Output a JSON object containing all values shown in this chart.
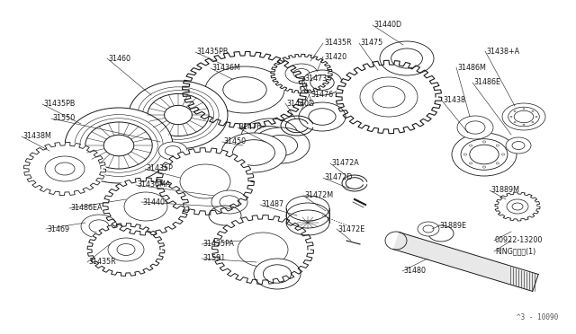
{
  "bg_color": "#ffffff",
  "line_color": "#1a1a1a",
  "fig_width": 6.4,
  "fig_height": 3.72,
  "dpi": 100,
  "watermark": "^3 - 10090",
  "labels": [
    [
      "31435PB",
      220,
      62
    ],
    [
      "31436M",
      238,
      82
    ],
    [
      "31435R",
      358,
      52
    ],
    [
      "31420",
      355,
      68
    ],
    [
      "31440D",
      412,
      30
    ],
    [
      "31475",
      400,
      52
    ],
    [
      "31476",
      355,
      108
    ],
    [
      "31473",
      340,
      90
    ],
    [
      "31440D",
      322,
      118
    ],
    [
      "31486M",
      510,
      80
    ],
    [
      "31438+A",
      540,
      60
    ],
    [
      "31486E",
      528,
      95
    ],
    [
      "31438",
      495,
      115
    ],
    [
      "31460",
      118,
      68
    ],
    [
      "31435PB",
      52,
      120
    ],
    [
      "31550",
      60,
      138
    ],
    [
      "31438M",
      28,
      158
    ],
    [
      "31476",
      268,
      145
    ],
    [
      "31450",
      250,
      162
    ],
    [
      "31435P",
      165,
      190
    ],
    [
      "31436MA",
      155,
      210
    ],
    [
      "31440",
      162,
      228
    ],
    [
      "31486EA",
      80,
      235
    ],
    [
      "31469",
      55,
      260
    ],
    [
      "31435R",
      102,
      295
    ],
    [
      "31435PA",
      228,
      275
    ],
    [
      "31591",
      228,
      290
    ],
    [
      "31487",
      295,
      230
    ],
    [
      "31472A",
      370,
      185
    ],
    [
      "31472D",
      362,
      202
    ],
    [
      "31472M",
      340,
      222
    ],
    [
      "31472E",
      378,
      258
    ],
    [
      "31480",
      452,
      305
    ],
    [
      "31889E",
      490,
      255
    ],
    [
      "31889M",
      548,
      215
    ],
    [
      "00922-13200",
      552,
      272
    ],
    [
      "RINGリング(1)",
      552,
      285
    ]
  ]
}
